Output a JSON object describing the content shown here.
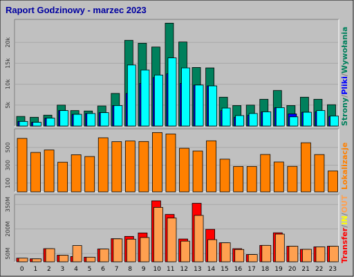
{
  "title": "Raport Godzinowy -  marzec 2023",
  "colors": {
    "background": "#c0c0c0",
    "title": "#0000a0",
    "strony": "#00805c",
    "pliki": "#0000ff",
    "wywolania": "#00ffff",
    "lokalizacje": "#ff8000",
    "transfer": "#ff0000",
    "in": "#ffff00",
    "out": "#ffa050"
  },
  "side_labels": {
    "top": {
      "strony": "Strony",
      "sep1": "/",
      "pliki": "Pliki",
      "sep2": "/",
      "wywolania": "Wywołania"
    },
    "mid": {
      "lokalizacje": "Lokalizacje"
    },
    "bottom": {
      "transfer": "Transfer",
      "sep1": "/",
      "in": "IN",
      "sep2": "/",
      "out": "OUT"
    }
  },
  "chart_data": [
    {
      "type": "bar",
      "categories": [
        "0",
        "1",
        "2",
        "3",
        "4",
        "5",
        "6",
        "7",
        "8",
        "9",
        "10",
        "11",
        "12",
        "13",
        "14",
        "15",
        "16",
        "17",
        "18",
        "19",
        "20",
        "21",
        "22",
        "23"
      ],
      "y_ticks": [
        {
          "value": 5000,
          "label": "5k"
        },
        {
          "value": 10000,
          "label": "10k"
        },
        {
          "value": 15000,
          "label": "15k"
        },
        {
          "value": 20000,
          "label": "20k"
        }
      ],
      "ylim": [
        0,
        25500
      ],
      "series": [
        {
          "name": "Strony",
          "values": [
            2300,
            2100,
            2600,
            5000,
            3700,
            3600,
            4800,
            7800,
            20500,
            19800,
            18900,
            24600,
            20100,
            14000,
            13900,
            6900,
            4900,
            5000,
            6400,
            8500,
            4900,
            6900,
            6400,
            5100
          ]
        },
        {
          "name": "Pliki",
          "values": [
            1100,
            900,
            1900,
            3700,
            2800,
            3000,
            3200,
            4900,
            7800,
            10200,
            11600,
            12500,
            10200,
            9800,
            9600,
            3700,
            2100,
            2600,
            3400,
            4400,
            2900,
            3300,
            3400,
            2300
          ]
        },
        {
          "name": "Wywołania",
          "values": [
            1100,
            900,
            1900,
            3700,
            2800,
            3000,
            3200,
            4900,
            14600,
            13400,
            12200,
            16300,
            13900,
            9800,
            9600,
            4300,
            2500,
            3000,
            3400,
            4400,
            2200,
            3300,
            3700,
            2400
          ]
        }
      ]
    },
    {
      "type": "bar",
      "categories": [
        "0",
        "1",
        "2",
        "3",
        "4",
        "5",
        "6",
        "7",
        "8",
        "9",
        "10",
        "11",
        "12",
        "13",
        "14",
        "15",
        "16",
        "17",
        "18",
        "19",
        "20",
        "21",
        "22",
        "23"
      ],
      "y_ticks": [
        {
          "value": 100,
          "label": "100"
        },
        {
          "value": 300,
          "label": "300"
        },
        {
          "value": 500,
          "label": "500"
        }
      ],
      "ylim": [
        0,
        710
      ],
      "series": [
        {
          "name": "Lokalizacje",
          "values": [
            602,
            444,
            472,
            334,
            418,
            398,
            609,
            565,
            573,
            567,
            668,
            652,
            491,
            460,
            575,
            368,
            286,
            286,
            421,
            336,
            287,
            553,
            420,
            235
          ]
        }
      ]
    },
    {
      "type": "bar",
      "categories": [
        "0",
        "1",
        "2",
        "3",
        "4",
        "5",
        "6",
        "7",
        "8",
        "9",
        "10",
        "11",
        "12",
        "13",
        "14",
        "15",
        "16",
        "17",
        "18",
        "19",
        "20",
        "21",
        "22",
        "23"
      ],
      "y_ticks": [
        {
          "value": 50,
          "label": "50M"
        },
        {
          "value": 200,
          "label": "200M"
        },
        {
          "value": 350,
          "label": "350M"
        }
      ],
      "ylim": [
        0,
        410
      ],
      "series": [
        {
          "name": "Transfer",
          "values": [
            22,
            18,
            80,
            40,
            32,
            28,
            78,
            141,
            155,
            176,
            372,
            289,
            139,
            357,
            198,
            116,
            80,
            44,
            100,
            177,
            95,
            76,
            91,
            95
          ]
        },
        {
          "name": "OUT",
          "values": [
            22,
            18,
            80,
            40,
            99,
            28,
            78,
            140,
            138,
            148,
            332,
            267,
            126,
            283,
            135,
            116,
            75,
            44,
            100,
            169,
            95,
            76,
            91,
            95
          ]
        }
      ]
    }
  ]
}
